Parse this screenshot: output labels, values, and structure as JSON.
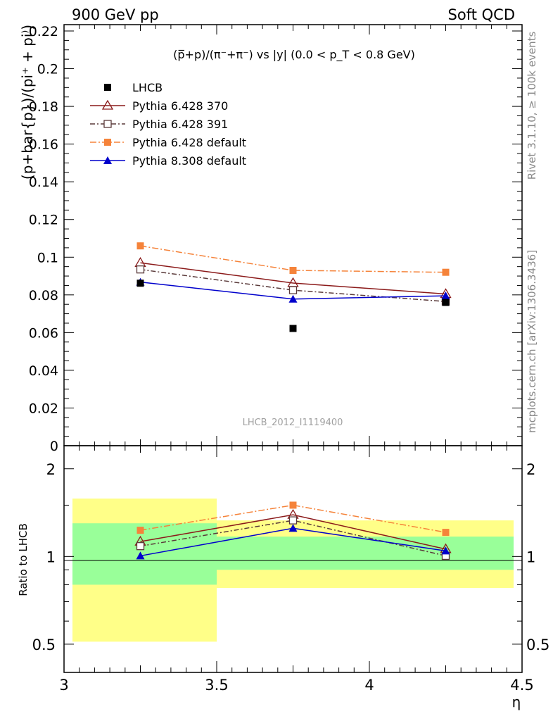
{
  "header": {
    "left": "900 GeV pp",
    "right": "Soft QCD"
  },
  "side_labels": {
    "rivet": "Rivet 3.1.10, ≥ 100k events",
    "mcplots": "mcplots.cern.ch [arXiv:1306.3436]"
  },
  "chart_data": [
    {
      "type": "scatter",
      "title": "(p̅+p)/(π⁻+π⁻) vs |y| (0.0 < p_T < 0.8 GeV)",
      "ylabel": "(p+bar{p})/(pi⁺ + pi⁾)",
      "analysis": "LHCB_2012_I1119400",
      "xlim": [
        3,
        4.5
      ],
      "ylim": [
        0,
        0.225
      ],
      "yticks": [
        "0",
        "0.02",
        "0.04",
        "0.06",
        "0.08",
        "0.1",
        "0.12",
        "0.14",
        "0.16",
        "0.18",
        "0.2",
        "0.22"
      ],
      "x": [
        3.25,
        3.75,
        4.25
      ],
      "legend_position": "top-left",
      "series": [
        {
          "name": "LHCB",
          "color": "#000000",
          "marker": "square",
          "y": [
            0.0862,
            0.0622,
            0.076
          ],
          "err": [
            0.0012,
            0.001,
            0.0012
          ]
        },
        {
          "name": "Pythia 6.428 370",
          "color": "#8b1a1a",
          "marker": "triangle-open",
          "line": "solid",
          "y": [
            0.097,
            0.0863,
            0.0805
          ]
        },
        {
          "name": "Pythia 6.428 391",
          "color": "#5a3a3a",
          "marker": "square-open",
          "line": "dashdot",
          "y": [
            0.0935,
            0.0825,
            0.0765
          ]
        },
        {
          "name": "Pythia 6.428 default",
          "color": "#f5833a",
          "marker": "square",
          "line": "dashdot-orange",
          "y": [
            0.106,
            0.093,
            0.092
          ],
          "err": [
            0.0018,
            0.0,
            0.0
          ]
        },
        {
          "name": "Pythia 8.308 default",
          "color": "#0000cc",
          "marker": "triangle",
          "line": "solid",
          "y": [
            0.0868,
            0.0778,
            0.0795
          ]
        }
      ]
    },
    {
      "type": "line",
      "ylabel": "Ratio to LHCB",
      "xlabel": "η",
      "xlim": [
        3,
        4.5
      ],
      "ylim": [
        0.4,
        2.4
      ],
      "yscale": "log",
      "yticks": [
        "0.5",
        "1",
        "2"
      ],
      "xticks": [
        "3",
        "3.5",
        "4",
        "4.5"
      ],
      "x": [
        3.25,
        3.75,
        4.25
      ],
      "bands": [
        {
          "x0": 3.0,
          "x1": 3.5,
          "yellow": [
            0.51,
            1.58
          ],
          "green": [
            0.8,
            1.3
          ]
        },
        {
          "x0": 3.5,
          "x1": 4.5,
          "yellow": [
            0.78,
            1.33
          ],
          "green": [
            0.9,
            1.17
          ]
        }
      ],
      "series": [
        {
          "name": "Pythia 6.428 370",
          "color": "#8b1a1a",
          "marker": "triangle-open",
          "line": "solid",
          "y": [
            1.125,
            1.39,
            1.06
          ]
        },
        {
          "name": "Pythia 6.428 391",
          "color": "#5a3a3a",
          "marker": "square-open",
          "line": "dashdot",
          "y": [
            1.085,
            1.33,
            1.005
          ]
        },
        {
          "name": "Pythia 6.428 default",
          "color": "#f5833a",
          "marker": "square",
          "line": "dashdot-orange",
          "y": [
            1.23,
            1.5,
            1.21
          ]
        },
        {
          "name": "Pythia 8.308 default",
          "color": "#0000cc",
          "marker": "triangle",
          "line": "solid",
          "y": [
            1.005,
            1.25,
            1.045
          ]
        }
      ]
    }
  ]
}
